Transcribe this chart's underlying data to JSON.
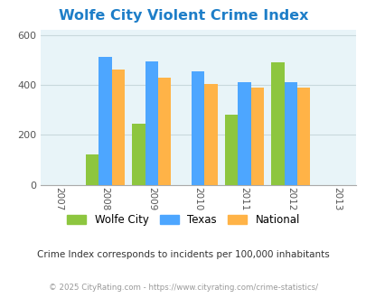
{
  "title": "Wolfe City Violent Crime Index",
  "title_color": "#1e7ec8",
  "years": [
    2007,
    2008,
    2009,
    2010,
    2011,
    2012,
    2013
  ],
  "bar_years": [
    2008,
    2009,
    2010,
    2011,
    2012
  ],
  "wolfe_city": [
    120,
    245,
    0,
    280,
    490
  ],
  "texas": [
    510,
    495,
    455,
    410,
    410
  ],
  "national": [
    460,
    430,
    405,
    390,
    388
  ],
  "wolfe_color": "#8dc63f",
  "texas_color": "#4da6ff",
  "national_color": "#ffb347",
  "ylim": [
    0,
    620
  ],
  "yticks": [
    0,
    200,
    400,
    600
  ],
  "bg_color": "#e8f4f8",
  "grid_color": "#c8d8dc",
  "subtitle": "Crime Index corresponds to incidents per 100,000 inhabitants",
  "footer": "© 2025 CityRating.com - https://www.cityrating.com/crime-statistics/",
  "legend_labels": [
    "Wolfe City",
    "Texas",
    "National"
  ],
  "bar_width": 0.28
}
